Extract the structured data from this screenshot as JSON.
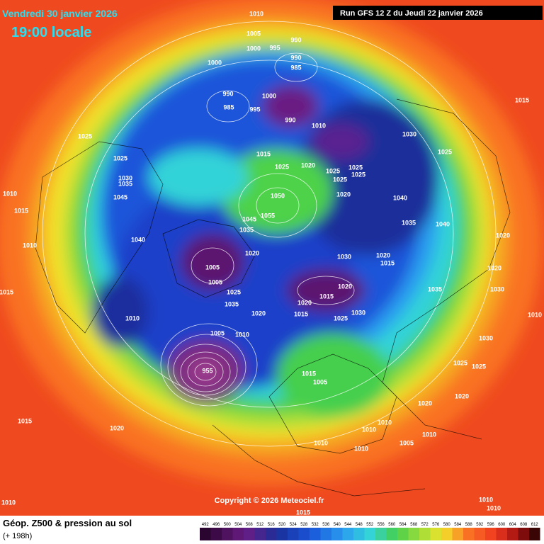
{
  "header": {
    "date": "Vendredi 30 janvier 2026",
    "time": "19:00 locale",
    "run": "Run GFS 12 Z du Jeudi 22 janvier 2026"
  },
  "copyright": "Copyright © 2026 Meteociel.fr",
  "footer": {
    "title": "Géop. Z500 & pression au sol",
    "lead": "(+ 198h)"
  },
  "colorbar": {
    "ticks": [
      492,
      496,
      500,
      504,
      508,
      512,
      516,
      520,
      524,
      528,
      532,
      536,
      540,
      544,
      548,
      552,
      556,
      560,
      564,
      568,
      572,
      576,
      580,
      584,
      588,
      592,
      596,
      600,
      604,
      608,
      612
    ]
  },
  "pressure_labels": [
    1010,
    1005,
    990,
    995,
    1000,
    990,
    985,
    1000,
    990,
    1000,
    985,
    995,
    990,
    1010,
    1030,
    1015,
    1025,
    1025,
    1015,
    1025,
    1020,
    1025,
    1025,
    1025,
    1025,
    1030,
    1035,
    1010,
    1020,
    1050,
    1040,
    1045,
    1015,
    1055,
    1045,
    1035,
    1025,
    1035,
    1040,
    1040,
    1010,
    1020,
    1030,
    1020,
    1015,
    1005,
    1020,
    1005,
    1015,
    1025,
    1020,
    1035,
    1015,
    1030,
    1020,
    1035,
    1020,
    1010,
    1015,
    1030,
    1025,
    1010,
    1005,
    1010,
    1030,
    1025,
    1025,
    1015,
    1005,
    955,
    1020,
    1020,
    1015,
    1020,
    1010,
    1010,
    1010,
    1010,
    1005,
    1010,
    1010,
    1015,
    1010,
    1010,
    1020
  ]
}
